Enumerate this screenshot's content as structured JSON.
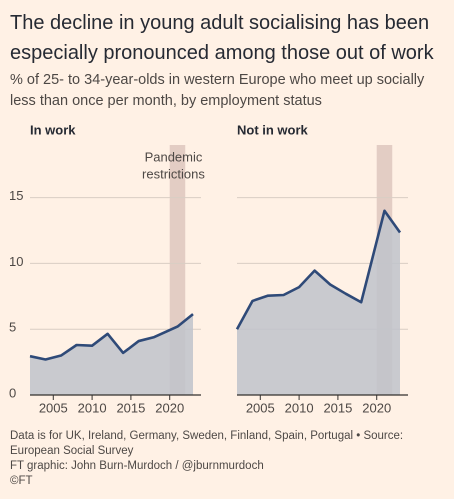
{
  "title": "The decline in young adult socialising has been especially pronounced among those out of work",
  "subtitle": "% of 25- to 34-year-olds in western Europe who meet up socially less than once per month, by employment status",
  "footer": [
    "Data is for UK, Ireland, Germany, Sweden, Finland, Spain, Portugal • Source: European Social Survey",
    "FT graphic: John Burn-Murdoch / @jburnmurdoch",
    "©FT"
  ],
  "chart_data": [
    {
      "type": "area",
      "title": "In work",
      "color": "#2f4a78",
      "fill": "#bfc3cb",
      "x": [
        2002,
        2004,
        2006,
        2008,
        2010,
        2012,
        2014,
        2016,
        2018,
        2021,
        2023
      ],
      "values": [
        2.95,
        2.7,
        3.0,
        3.8,
        3.75,
        4.65,
        3.2,
        4.1,
        4.4,
        5.2,
        6.15
      ],
      "xlim": [
        2002,
        2023
      ],
      "ylim": [
        0,
        19
      ],
      "xticks": [
        2005,
        2010,
        2015,
        2020
      ],
      "yticks": [
        0,
        5,
        10,
        15
      ],
      "grid": true,
      "highlight": {
        "x": [
          2020,
          2022
        ],
        "label": [
          "Pandemic",
          "restrictions"
        ],
        "color": "#e3cdc4"
      }
    },
    {
      "type": "area",
      "title": "Not in work",
      "color": "#2f4a78",
      "fill": "#bfc3cb",
      "x": [
        2002,
        2004,
        2006,
        2008,
        2010,
        2012,
        2014,
        2016,
        2018,
        2021,
        2023
      ],
      "values": [
        5.0,
        7.15,
        7.55,
        7.6,
        8.2,
        9.45,
        8.4,
        7.7,
        7.05,
        14.0,
        12.35
      ],
      "xlim": [
        2002,
        2023
      ],
      "ylim": [
        0,
        19
      ],
      "xticks": [
        2005,
        2010,
        2015,
        2020
      ],
      "yticks": [
        0,
        5,
        10,
        15
      ],
      "grid": true,
      "highlight": {
        "x": [
          2020,
          2022
        ],
        "color": "#e3cdc4"
      }
    }
  ]
}
